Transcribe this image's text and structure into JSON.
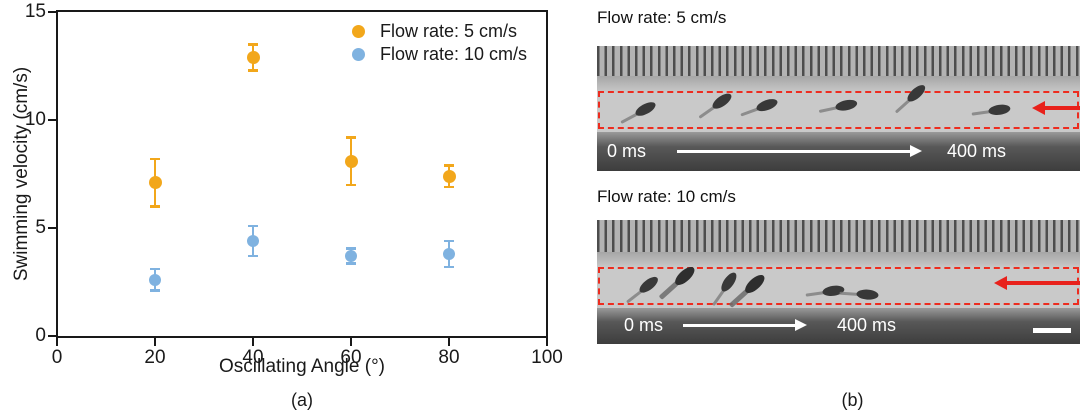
{
  "figure": {
    "panel_a_caption": "(a)",
    "panel_b_caption": "(b)"
  },
  "chart_data": {
    "type": "scatter",
    "title": "",
    "xlabel": "Oscillating Angle (°)",
    "ylabel": "Swimming velocity (cm/s)",
    "xlim": [
      0,
      100
    ],
    "ylim": [
      0,
      15
    ],
    "x_ticks": [
      0,
      20,
      40,
      60,
      80,
      100
    ],
    "y_ticks": [
      0,
      5,
      10,
      15
    ],
    "grid": false,
    "legend_position": "top-right-inside",
    "series": [
      {
        "name": "Flow rate: 5 cm/s",
        "color": "#F2A71B",
        "marker_size": 13,
        "x": [
          20,
          40,
          60,
          80
        ],
        "y": [
          7.1,
          12.9,
          8.1,
          7.4
        ],
        "y_err": [
          1.1,
          0.6,
          1.1,
          0.5
        ]
      },
      {
        "name": "Flow rate: 10 cm/s",
        "color": "#7FB2E0",
        "marker_size": 12,
        "x": [
          20,
          40,
          60,
          80
        ],
        "y": [
          2.6,
          4.4,
          3.7,
          3.8
        ],
        "y_err": [
          0.5,
          0.7,
          0.35,
          0.6
        ]
      }
    ]
  },
  "panel_b": {
    "images": [
      {
        "label": "Flow rate: 5 cm/s",
        "start_time": "0 ms",
        "end_time": "400 ms"
      },
      {
        "label": "Flow rate: 10 cm/s",
        "start_time": "0 ms",
        "end_time": "400 ms"
      }
    ]
  },
  "colors": {
    "flow_arrow_red": "#E8211B",
    "roi_dashed_red": "#ED2C1F",
    "axis_black": "#191919"
  }
}
